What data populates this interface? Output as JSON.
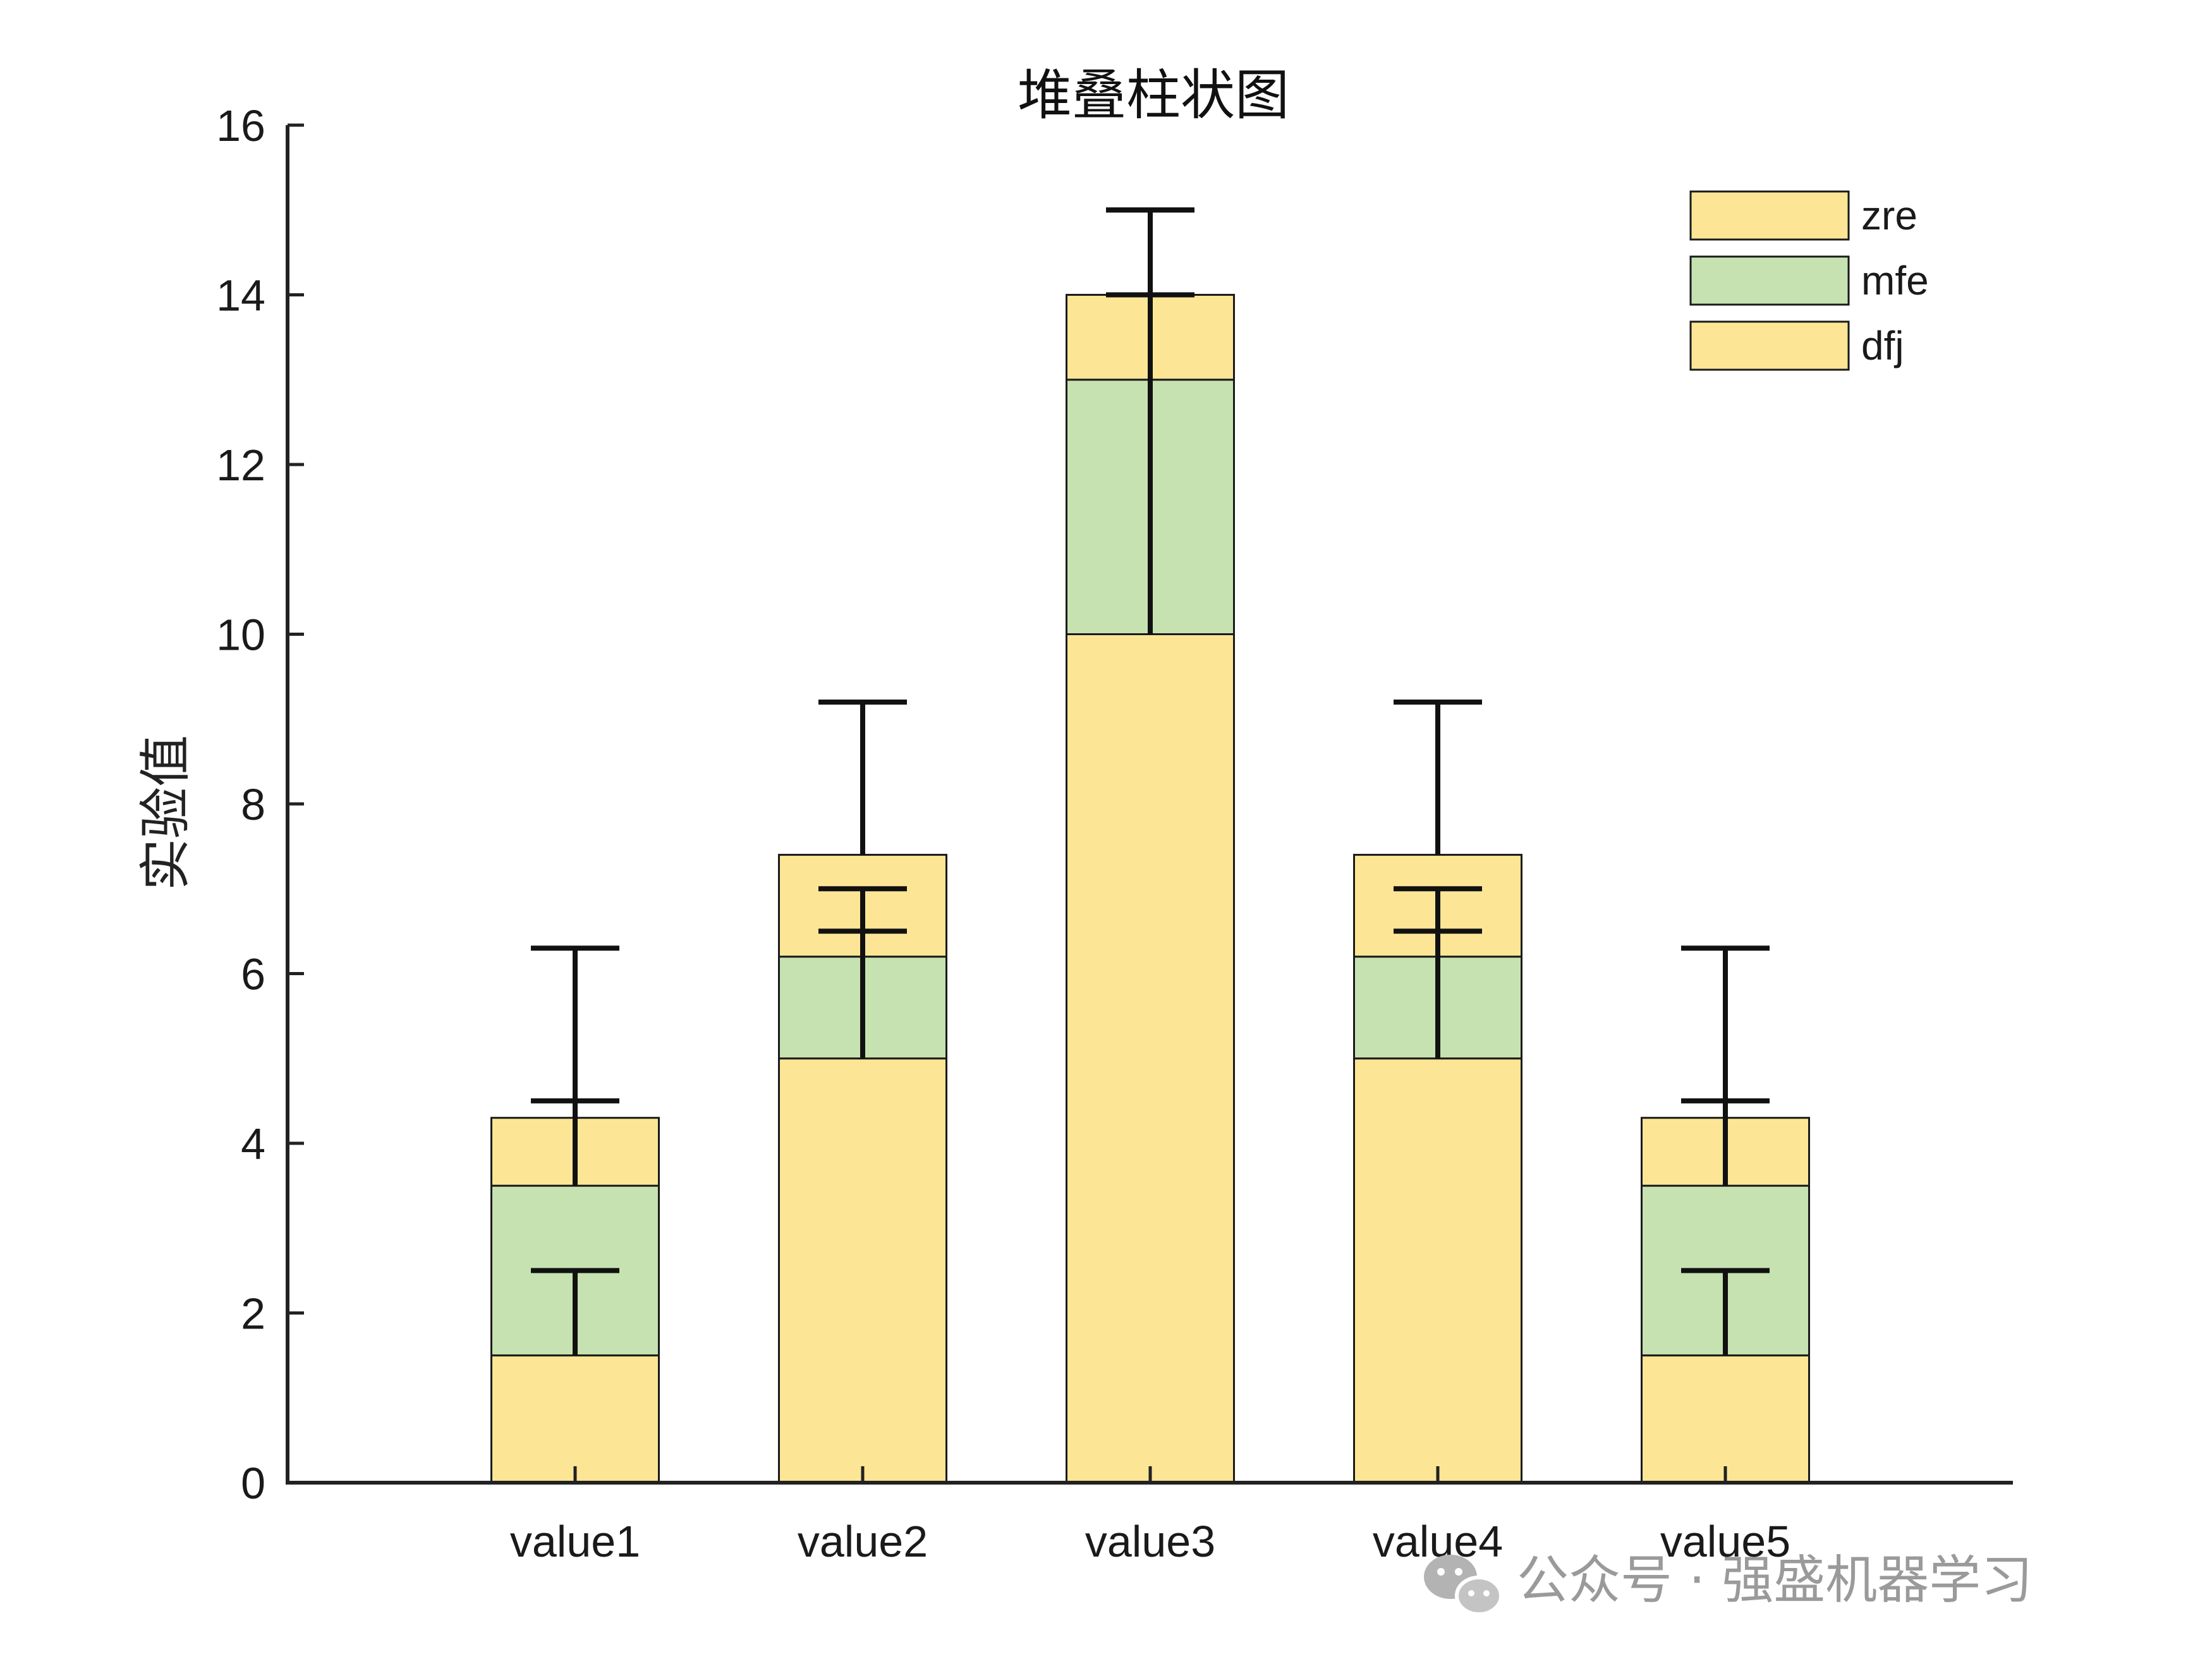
{
  "chart_data": {
    "type": "bar",
    "stacked": true,
    "title": "堆叠柱状图",
    "xlabel": "",
    "ylabel": "实验值",
    "ylim": [
      0,
      16
    ],
    "yticks": [
      0,
      2,
      4,
      6,
      8,
      10,
      12,
      14,
      16
    ],
    "categories": [
      "value1",
      "value2",
      "value3",
      "value4",
      "value5"
    ],
    "series": [
      {
        "name": "dfj",
        "values": [
          1.5,
          5,
          10,
          5,
          1.5
        ],
        "color": "#FCE695"
      },
      {
        "name": "mfe",
        "values": [
          2,
          1.2,
          3,
          1.2,
          2
        ],
        "color": "#C6E2B1"
      },
      {
        "name": "zre",
        "values": [
          0.8,
          1.2,
          1,
          1.2,
          0.8
        ],
        "color": "#FCE695"
      }
    ],
    "legend_order": [
      "zre",
      "mfe",
      "dfj"
    ],
    "legend_position": "top-right",
    "error_bars": [
      {
        "series": "dfj",
        "upper": [
          2.5,
          6.5,
          14,
          6.5,
          2.5
        ]
      },
      {
        "series": "mfe",
        "upper": [
          4.5,
          7,
          15,
          7,
          4.5
        ]
      },
      {
        "series": "zre",
        "upper": [
          6.3,
          9.2,
          15,
          9.2,
          6.3
        ]
      }
    ],
    "grid": false,
    "colors": {
      "axis": "#222222",
      "edge": "#1a1a1a",
      "errorbar": "#111111"
    }
  },
  "watermark": {
    "text": "公众号 · 强盛机器学习",
    "icon": "wechat-icon"
  }
}
